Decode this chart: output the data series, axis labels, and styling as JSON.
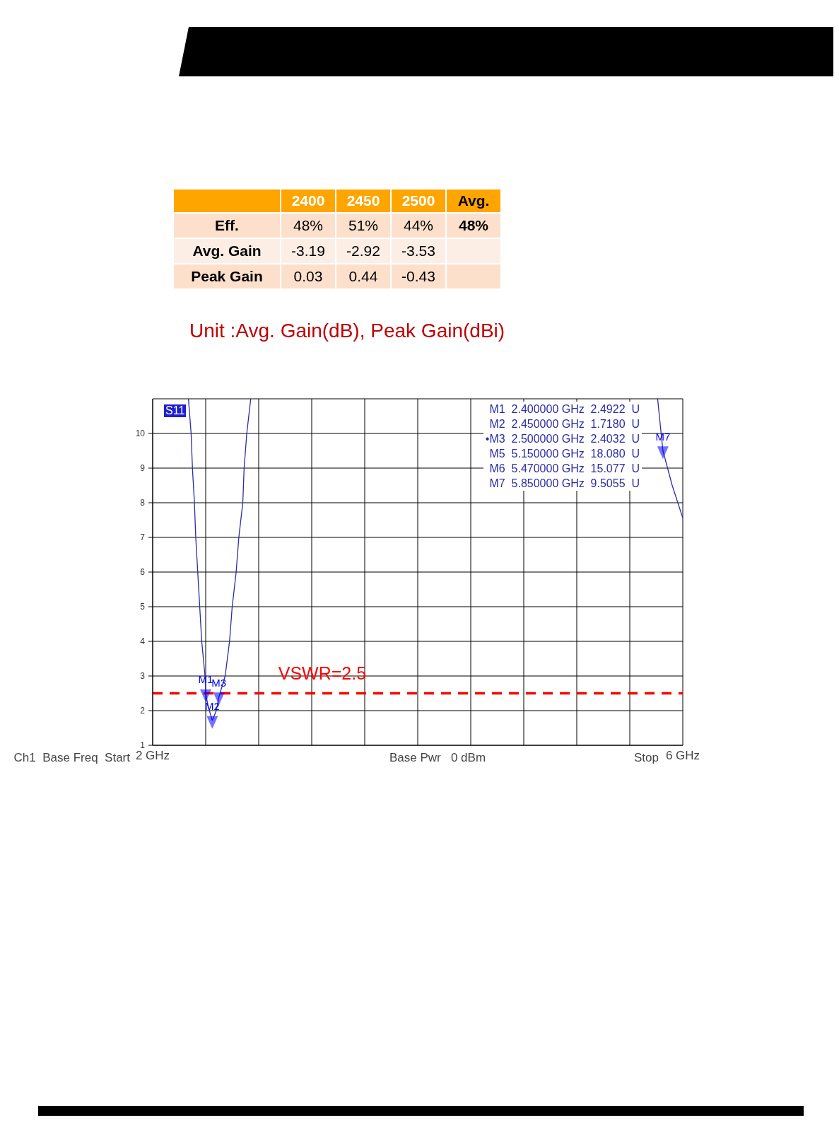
{
  "chart_data": [
    {
      "type": "other",
      "categories": [
        "2400",
        "2450",
        "2500",
        "Avg."
      ],
      "y_categories": [
        "Eff.",
        "Avg. Gain",
        "Peak Gain"
      ],
      "cell_labels": [
        [
          "48%",
          "51%",
          "44%",
          "48%"
        ],
        [
          "-3.19",
          "-2.92",
          "-3.53",
          null
        ],
        [
          "0.03",
          "0.44",
          "-0.43",
          null
        ]
      ],
      "annotations": [
        "Unit :Avg. Gain(dB), Peak Gain(dBi)"
      ]
    },
    {
      "type": "line",
      "xlim": [
        2,
        6
      ],
      "ylim": [
        1,
        11
      ],
      "xticks": [
        {
          "value": 2,
          "label": "2 GHz"
        },
        {
          "value": 2.4,
          "label": null
        },
        {
          "value": 2.8,
          "label": null
        },
        {
          "value": 3.2,
          "label": null
        },
        {
          "value": 3.6,
          "label": null
        },
        {
          "value": 4.0,
          "label": null
        },
        {
          "value": 4.4,
          "label": null
        },
        {
          "value": 4.8,
          "label": null
        },
        {
          "value": 5.2,
          "label": null
        },
        {
          "value": 5.6,
          "label": null
        },
        {
          "value": 6,
          "label": "6 GHz"
        }
      ],
      "yticks": [
        1,
        2,
        3,
        4,
        5,
        6,
        7,
        8,
        9,
        10
      ],
      "grid": true,
      "series": [
        {
          "type": "line",
          "color": "#2b2ba8",
          "x": [
            2.27,
            2.29,
            2.3,
            2.315,
            2.325,
            2.34,
            2.355,
            2.37,
            2.395,
            2.4,
            2.42,
            2.45,
            2.48,
            2.5,
            2.547,
            2.58,
            2.6,
            2.63,
            2.65,
            2.68,
            2.69,
            2.71,
            2.74,
            4.0,
            5.81,
            5.85,
            5.92,
            6.0
          ],
          "values": [
            11,
            10,
            9,
            8,
            7,
            6,
            5,
            4,
            3,
            2.4922,
            2.1,
            1.718,
            2.0,
            2.4032,
            3,
            4,
            5,
            6,
            7,
            8,
            9,
            10,
            11,
            null,
            11,
            9.5055,
            8.5,
            7.56
          ]
        },
        {
          "type": "scatter",
          "marker": "triangle",
          "color": "#0000ff",
          "x": [
            2.4,
            2.45,
            2.5,
            5.85
          ],
          "values": [
            2.4922,
            1.718,
            2.4032,
            9.5055
          ],
          "value_labels": [
            "M1",
            "M2",
            "M3",
            "M7"
          ]
        }
      ],
      "ref_lines": [
        {
          "axis": "y",
          "value": 2.5,
          "label": "VSWR=2.5",
          "color": "#ff0000",
          "line_style": "dashed"
        }
      ],
      "annotations": [
        "S11",
        "M1  2.400000 GHz  2.4922  U",
        "M2  2.450000 GHz  1.7180  U",
        "•M3  2.500000 GHz  2.4032  U",
        "M5  5.150000 GHz  18.080  U",
        "M6  5.470000 GHz  15.077  U",
        "M7  5.850000 GHz  9.5055  U",
        "Ch1  Base Freq  Start",
        "Base Pwr   0 dBm",
        "Stop"
      ]
    }
  ]
}
